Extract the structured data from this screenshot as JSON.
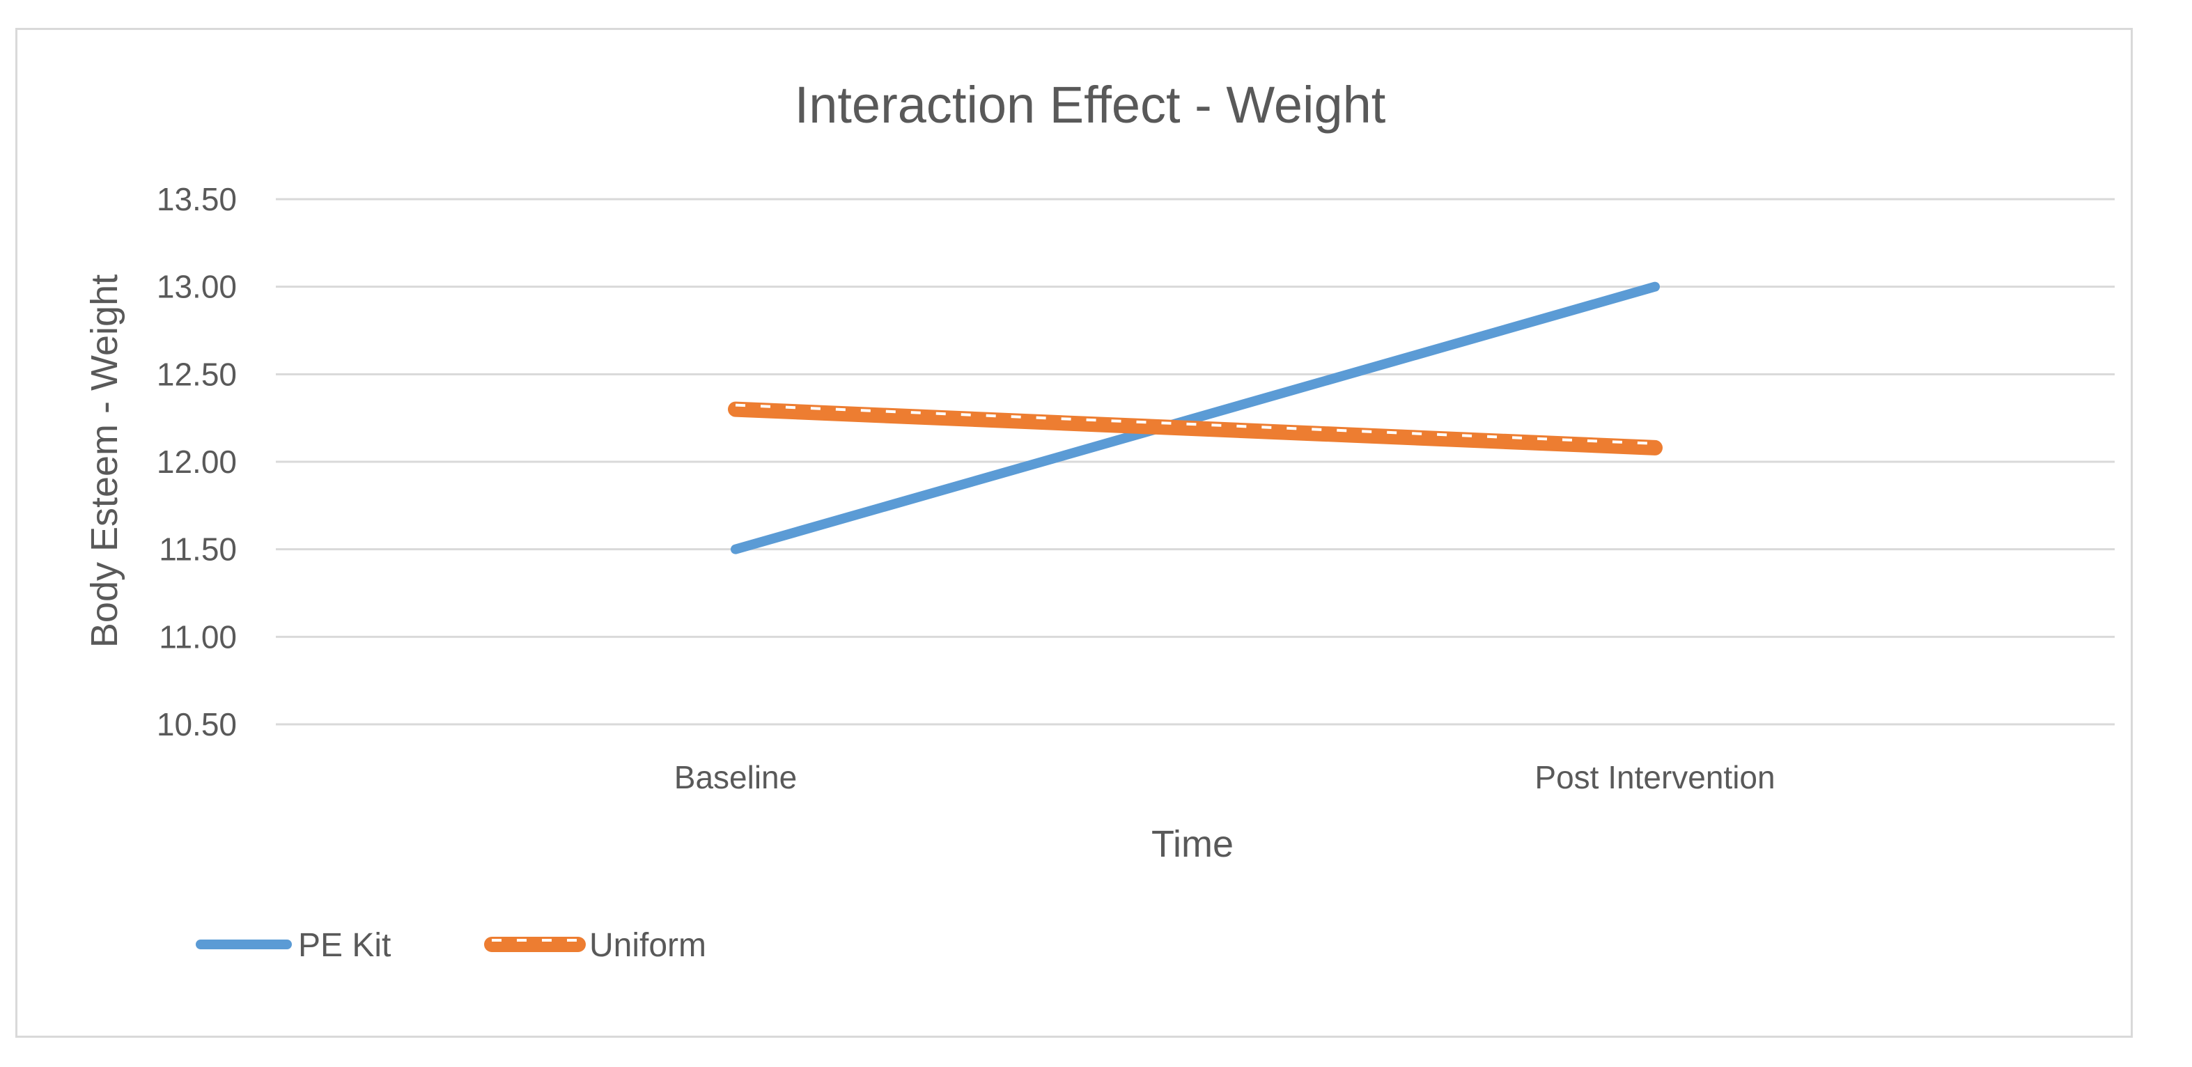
{
  "chart_data": {
    "type": "line",
    "title": "Interaction Effect - Weight",
    "xlabel": "Time",
    "ylabel": "Body Esteem - Weight",
    "categories": [
      "Baseline",
      "Post Intervention"
    ],
    "ylim": [
      10.5,
      13.5
    ],
    "yticks": [
      "10.50",
      "11.00",
      "11.50",
      "12.00",
      "12.50",
      "13.00",
      "13.50"
    ],
    "ytick_values": [
      10.5,
      11.0,
      11.5,
      12.0,
      12.5,
      13.0,
      13.5
    ],
    "grid": true,
    "legend_position": "bottom-left",
    "series": [
      {
        "name": "PE Kit",
        "values": [
          11.5,
          13.0
        ],
        "color": "#5B9BD5",
        "style": "solid"
      },
      {
        "name": "Uniform",
        "values": [
          12.3,
          12.08
        ],
        "color": "#ED7D31",
        "style": "dashed-thick"
      }
    ]
  }
}
